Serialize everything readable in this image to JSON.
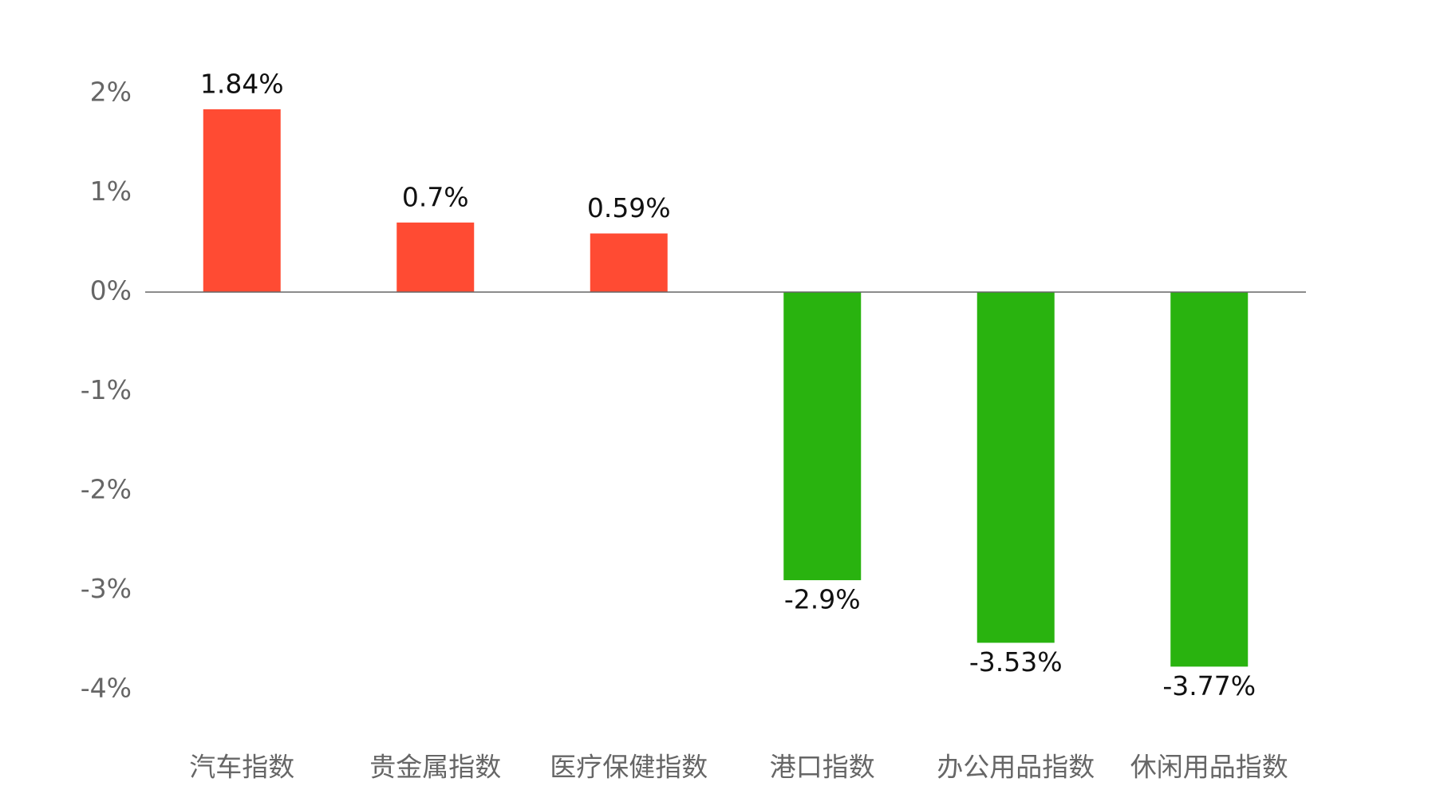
{
  "chart_data": {
    "type": "bar",
    "categories": [
      "汽车指数",
      "贵金属指数",
      "医疗保健指数",
      "港口指数",
      "办公用品指数",
      "休闲用品指数"
    ],
    "values": [
      1.84,
      0.7,
      0.59,
      -2.9,
      -3.53,
      -3.77
    ],
    "value_labels": [
      "1.84%",
      "0.7%",
      "0.59%",
      "-2.9%",
      "-3.53%",
      "-3.77%"
    ],
    "colors": [
      "#ff4b33",
      "#ff4b33",
      "#ff4b33",
      "#29b30f",
      "#29b30f",
      "#29b30f"
    ],
    "ylim": [
      -4,
      2
    ],
    "yticks": [
      {
        "value": 2,
        "label": "2%"
      },
      {
        "value": 1,
        "label": "1%"
      },
      {
        "value": 0,
        "label": "0%"
      },
      {
        "value": -1,
        "label": "-1%"
      },
      {
        "value": -2,
        "label": "-2%"
      },
      {
        "value": -3,
        "label": "-3%"
      },
      {
        "value": -4,
        "label": "-4%"
      }
    ],
    "grid": false
  }
}
